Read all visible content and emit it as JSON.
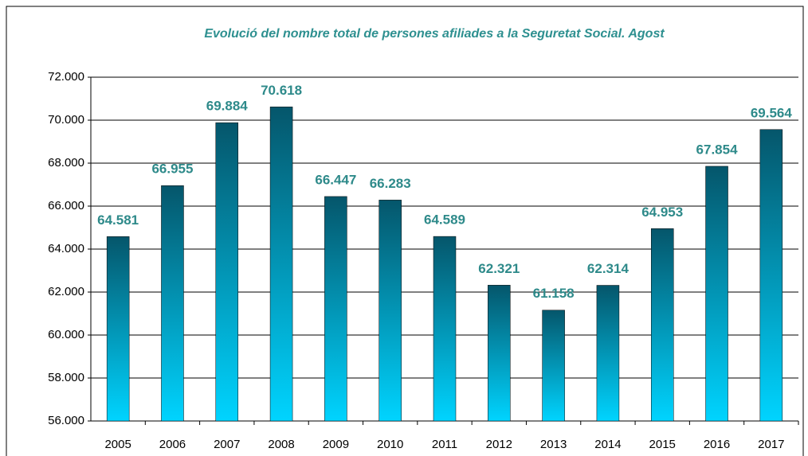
{
  "chart_data": {
    "type": "bar",
    "title": "Evolució del nombre total de persones afiliades a la Seguretat Social. Agost",
    "categories": [
      "2005",
      "2006",
      "2007",
      "2008",
      "2009",
      "2010",
      "2011",
      "2012",
      "2013",
      "2014",
      "2015",
      "2016",
      "2017"
    ],
    "values": [
      64581,
      66955,
      69884,
      70618,
      66447,
      66283,
      64589,
      62321,
      61158,
      62314,
      64953,
      67854,
      69564
    ],
    "value_labels": [
      "64.581",
      "66.955",
      "69.884",
      "70.618",
      "66.447",
      "66.283",
      "64.589",
      "62.321",
      "61.158",
      "62.314",
      "64.953",
      "67.854",
      "69.564"
    ],
    "gradient": [
      "#05566b",
      "#00d4ff"
    ],
    "ylim": [
      56000,
      72000
    ],
    "yticks": [
      {
        "value": 56000,
        "label": "56.000"
      },
      {
        "value": 58000,
        "label": "58.000"
      },
      {
        "value": 60000,
        "label": "60.000"
      },
      {
        "value": 62000,
        "label": "62.000"
      },
      {
        "value": 64000,
        "label": "64.000"
      },
      {
        "value": 66000,
        "label": "66.000"
      },
      {
        "value": 68000,
        "label": "68.000"
      },
      {
        "value": 70000,
        "label": "70.000"
      },
      {
        "value": 72000,
        "label": "72.000"
      }
    ],
    "grid": true
  }
}
